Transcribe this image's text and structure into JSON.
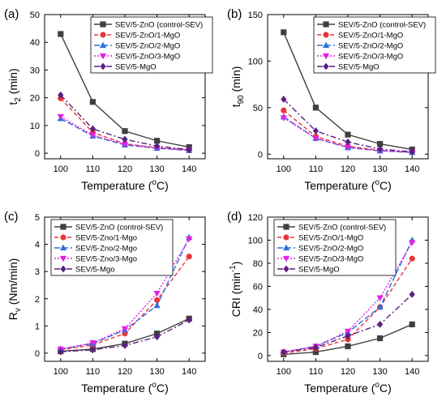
{
  "colors": {
    "black_series": "#404040",
    "red_series": "#e8363a",
    "blue_series": "#2e6fd8",
    "magenta_series": "#e81ee8",
    "purple_series": "#5a1f80"
  },
  "chart_data": [
    {
      "type": "line",
      "panel_label": "(a)",
      "ylabel_main": "t",
      "ylabel_sub": "2",
      "ylabel_unit": " (min)",
      "xlabel_main": "Temperature (",
      "xlabel_sup": "o",
      "xlabel_end": "C)",
      "x": [
        100,
        110,
        120,
        130,
        140
      ],
      "xticks": [
        "100",
        "110",
        "120",
        "130",
        "140"
      ],
      "ylim": [
        -2,
        50
      ],
      "yticks": [
        0,
        10,
        20,
        30,
        40,
        50
      ],
      "legend_position": "top-right",
      "series": [
        {
          "name": "SEV/5-ZnO (control-SEV)",
          "values": [
            43,
            18.5,
            8,
            4.5,
            2.2
          ]
        },
        {
          "name": "SEV/5-ZnO/1-MgO",
          "values": [
            19.8,
            7.5,
            3.4,
            2.0,
            1.2
          ]
        },
        {
          "name": "SEV/5-ZnO/2-MgO",
          "values": [
            12.5,
            6.2,
            3.0,
            1.8,
            1.0
          ]
        },
        {
          "name": "SEV/5-ZnO/3-MgO",
          "values": [
            13.2,
            6.5,
            3.2,
            1.9,
            1.1
          ]
        },
        {
          "name": "SEV/5-MgO",
          "values": [
            21,
            8.8,
            5.0,
            2.6,
            1.3
          ]
        }
      ]
    },
    {
      "type": "line",
      "panel_label": "(b)",
      "ylabel_main": "t",
      "ylabel_sub": "90",
      "ylabel_unit": " (min)",
      "xlabel_main": "Temperature (",
      "xlabel_sup": "o",
      "xlabel_end": "C)",
      "x": [
        100,
        110,
        120,
        130,
        140
      ],
      "xticks": [
        "100",
        "110",
        "120",
        "130",
        "140"
      ],
      "ylim": [
        -5,
        150
      ],
      "yticks": [
        0,
        50,
        100,
        150
      ],
      "legend_position": "top-right",
      "series": [
        {
          "name": "SEV/5-ZnO (control-SEV)",
          "values": [
            131,
            50,
            21,
            11,
            5
          ]
        },
        {
          "name": "SEV/5-ZnO/1-MgO",
          "values": [
            47,
            19,
            8.5,
            4,
            2
          ]
        },
        {
          "name": "SEV/5-ZnO/2-MgO",
          "values": [
            40,
            17,
            7,
            3.5,
            1.8
          ]
        },
        {
          "name": "SEV/5-ZnO/3-MgO",
          "values": [
            39,
            17,
            7.5,
            3.8,
            2
          ]
        },
        {
          "name": "SEV/5-MgO",
          "values": [
            59,
            25,
            13,
            5.5,
            2.5
          ]
        }
      ]
    },
    {
      "type": "line",
      "panel_label": "(c)",
      "ylabel_main": "R",
      "ylabel_sub": "v",
      "ylabel_unit": " (Nm/min)",
      "xlabel_main": "Temperature (",
      "xlabel_sup": "o",
      "xlabel_end": "C)",
      "x": [
        100,
        110,
        120,
        130,
        140
      ],
      "xticks": [
        "100",
        "110",
        "120",
        "130",
        "140"
      ],
      "ylim": [
        -0.3,
        5
      ],
      "yticks": [
        0,
        1,
        2,
        3,
        4,
        5
      ],
      "legend_position": "top-left",
      "series": [
        {
          "name": "SEV/5-ZnO (control-SEV)",
          "values": [
            0.07,
            0.15,
            0.35,
            0.72,
            1.27
          ]
        },
        {
          "name": "SEV/5-Zno/1-Mgo",
          "values": [
            0.12,
            0.3,
            0.72,
            1.95,
            3.55
          ]
        },
        {
          "name": "SEV/5-Zno/2-Mgo",
          "values": [
            0.15,
            0.35,
            0.85,
            1.75,
            4.25
          ]
        },
        {
          "name": "SEV/5-Zno/3-Mgo",
          "values": [
            0.15,
            0.38,
            0.9,
            2.2,
            4.2
          ]
        },
        {
          "name": "SEV/5-Mgo",
          "values": [
            0.05,
            0.12,
            0.28,
            0.6,
            1.22
          ]
        }
      ]
    },
    {
      "type": "line",
      "panel_label": "(d)",
      "ylabel_main": "CRI (min",
      "ylabel_sup": "-1",
      "ylabel_unit": ")",
      "xlabel_main": "Temperature (",
      "xlabel_sup": "o",
      "xlabel_end": "C)",
      "x": [
        100,
        110,
        120,
        130,
        140
      ],
      "xticks": [
        "100",
        "110",
        "120",
        "130",
        "140"
      ],
      "ylim": [
        -5,
        120
      ],
      "yticks": [
        0,
        20,
        40,
        60,
        80,
        100,
        120
      ],
      "legend_position": "top-left",
      "series": [
        {
          "name": "SEV/5-ZnO (control-SEV)",
          "values": [
            1,
            3,
            8,
            15,
            27
          ]
        },
        {
          "name": "SEV/5-ZnO/1-MgO",
          "values": [
            2,
            6,
            14,
            42,
            84
          ]
        },
        {
          "name": "SEV/5-ZnO/2-MgO",
          "values": [
            3,
            8,
            20,
            42,
            100
          ]
        },
        {
          "name": "SEV/5-ZnO/3-MgO",
          "values": [
            3,
            8,
            21,
            50,
            98
          ]
        },
        {
          "name": "SEV/5-MgO",
          "values": [
            3,
            7,
            17,
            27,
            53
          ]
        }
      ]
    }
  ]
}
